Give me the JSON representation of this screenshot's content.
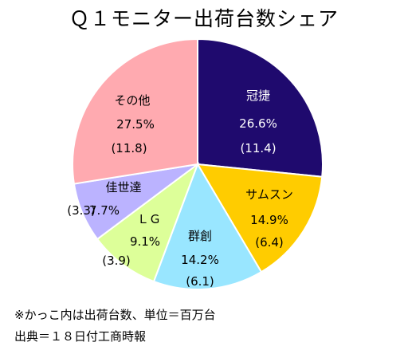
{
  "chart_data": {
    "type": "pie",
    "title": "Ｑ１モニター出荷台数シェア",
    "slices": [
      {
        "label": "冠捷",
        "share": 26.6,
        "share_label": "26.6%",
        "units": 11.4,
        "units_label": "(11.4)",
        "color": "#1f0a6e"
      },
      {
        "label": "サムスン",
        "share": 14.9,
        "share_label": "14.9%",
        "units": 6.4,
        "units_label": "(6.4)",
        "color": "#ffcc00"
      },
      {
        "label": "群創",
        "share": 14.2,
        "share_label": "14.2%",
        "units": 6.1,
        "units_label": "(6.1)",
        "color": "#99e6ff"
      },
      {
        "label": "ＬＧ",
        "share": 9.1,
        "share_label": "9.1%",
        "units": 3.9,
        "units_label": "(3.9)",
        "color": "#ddff99"
      },
      {
        "label": "佳世達",
        "share": 7.7,
        "share_label": "7.7%",
        "units": 3.3,
        "units_label": "(3.3)",
        "color": "#bbb3ff"
      },
      {
        "label": "その他",
        "share": 27.5,
        "share_label": "27.5%",
        "units": 11.8,
        "units_label": "(11.8)",
        "color": "#ffaab0"
      }
    ]
  },
  "notes": {
    "unit": "※かっこ内は出荷台数、単位＝百万台",
    "source": "出典＝１８日付工商時報"
  }
}
